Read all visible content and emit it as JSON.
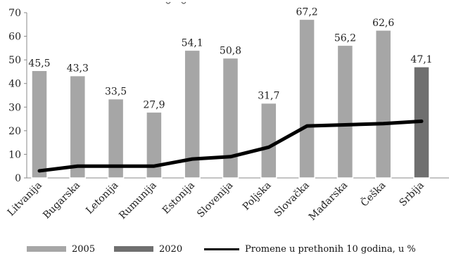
{
  "chart_data": {
    "type": "bar",
    "categories": [
      "Litvanija",
      "Bugarska",
      "Letonija",
      "Rumunija",
      "Estonija",
      "Slovenija",
      "Poljska",
      "Slovačka",
      "Mađarska",
      "Češka",
      "Srbija"
    ],
    "series": [
      {
        "name": "2005",
        "type": "bar",
        "color": "#a6a6a6",
        "values": [
          45.5,
          43.3,
          33.5,
          27.9,
          54.1,
          50.8,
          31.7,
          67.2,
          56.2,
          62.6,
          null
        ],
        "labels": [
          "45,5",
          "43,3",
          "33,5",
          "27,9",
          "54,1",
          "50,8",
          "31,7",
          "67,2",
          "56,2",
          "62,6",
          null
        ]
      },
      {
        "name": "2020",
        "type": "bar",
        "color": "#6f6f6f",
        "values": [
          null,
          null,
          null,
          null,
          null,
          null,
          null,
          null,
          null,
          null,
          47.1
        ],
        "labels": [
          null,
          null,
          null,
          null,
          null,
          null,
          null,
          null,
          null,
          null,
          "47,1"
        ]
      },
      {
        "name": "Promene u prethonih 10 godina, u %",
        "type": "line",
        "color": "#000000",
        "values": [
          3,
          5,
          5,
          5,
          8,
          9,
          13,
          22,
          22.5,
          23,
          24
        ]
      }
    ],
    "y_axis": {
      "min": 0,
      "max": 70,
      "ticks": [
        0,
        10,
        20,
        30,
        40,
        50,
        60,
        70
      ]
    },
    "grid": false,
    "legend_placement": "bottom"
  },
  "legend": {
    "items": [
      {
        "label": "2005",
        "color": "#a6a6a6"
      },
      {
        "label": "2020",
        "color": "#6f6f6f"
      },
      {
        "label": "Promene u prethonih 10 godina, u %",
        "color": "#000000"
      }
    ]
  }
}
